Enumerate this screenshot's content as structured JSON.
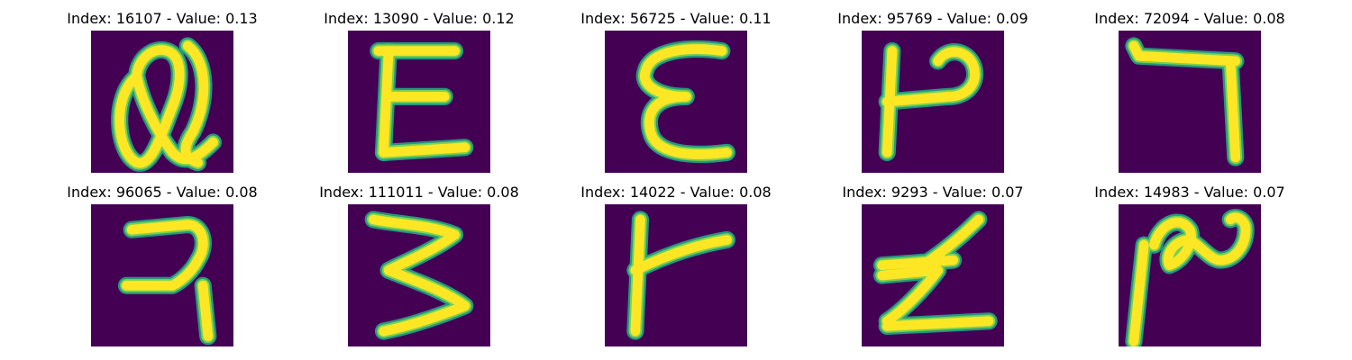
{
  "colors": {
    "background": "#440154",
    "stroke_core": "#fde725",
    "stroke_edge": "#22a884",
    "stroke_mid": "#7ad151"
  },
  "panels": [
    {
      "title": "Index: 16107 - Value: 0.13"
    },
    {
      "title": "Index: 13090 - Value: 0.12"
    },
    {
      "title": "Index: 56725 - Value: 0.11"
    },
    {
      "title": "Index: 95769 - Value: 0.09"
    },
    {
      "title": "Index: 72094 - Value: 0.08"
    },
    {
      "title": "Index: 96065 - Value: 0.08"
    },
    {
      "title": "Index: 111011 - Value: 0.08"
    },
    {
      "title": "Index: 14022 - Value: 0.08"
    },
    {
      "title": "Index: 9293 - Value: 0.07"
    },
    {
      "title": "Index: 14983 - Value: 0.07"
    }
  ]
}
